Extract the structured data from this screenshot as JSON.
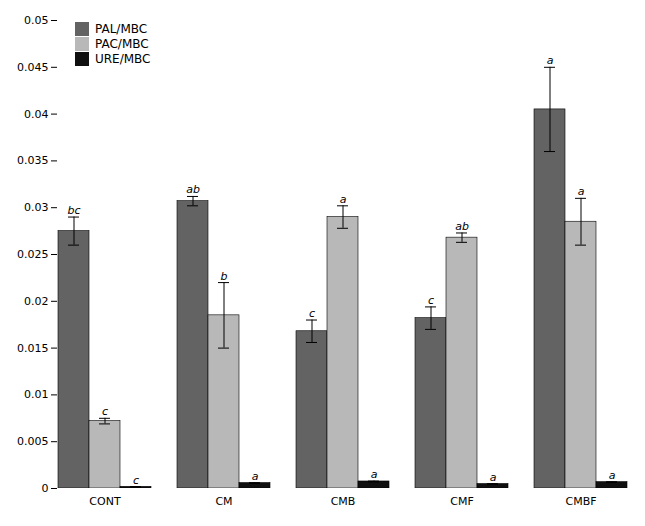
{
  "chart_data": {
    "type": "bar",
    "categories": [
      "CONT",
      "CM",
      "CMB",
      "CMF",
      "CMBF"
    ],
    "series": [
      {
        "name": "PAL/MBC",
        "color": "#636363",
        "values": [
          0.0275,
          0.0307,
          0.0168,
          0.0182,
          0.0405
        ],
        "errors": [
          0.0015,
          0.0005,
          0.0012,
          0.0012,
          0.0045
        ],
        "labels": [
          "bc",
          "ab",
          "c",
          "c",
          "a"
        ]
      },
      {
        "name": "PAC/MBC",
        "color": "#b8b8b8",
        "values": [
          0.0072,
          0.0185,
          0.029,
          0.0268,
          0.0285
        ],
        "errors": [
          0.0003,
          0.0035,
          0.0012,
          0.0005,
          0.0025
        ],
        "labels": [
          "c",
          "b",
          "a",
          "ab",
          "a"
        ]
      },
      {
        "name": "URE/MBC",
        "color": "#101010",
        "values": [
          0.00018,
          0.00058,
          0.00075,
          0.00048,
          0.00068
        ],
        "errors": [
          3e-05,
          4e-05,
          4e-05,
          3e-05,
          4e-05
        ],
        "labels": [
          "c",
          "a",
          "a",
          "a",
          "a"
        ]
      }
    ],
    "ylim": [
      0,
      0.05
    ],
    "yticks": [
      0,
      0.005,
      0.01,
      0.015,
      0.02,
      0.025,
      0.03,
      0.035,
      0.04,
      0.045,
      0.05
    ],
    "legend": "upper left",
    "grid": false
  }
}
